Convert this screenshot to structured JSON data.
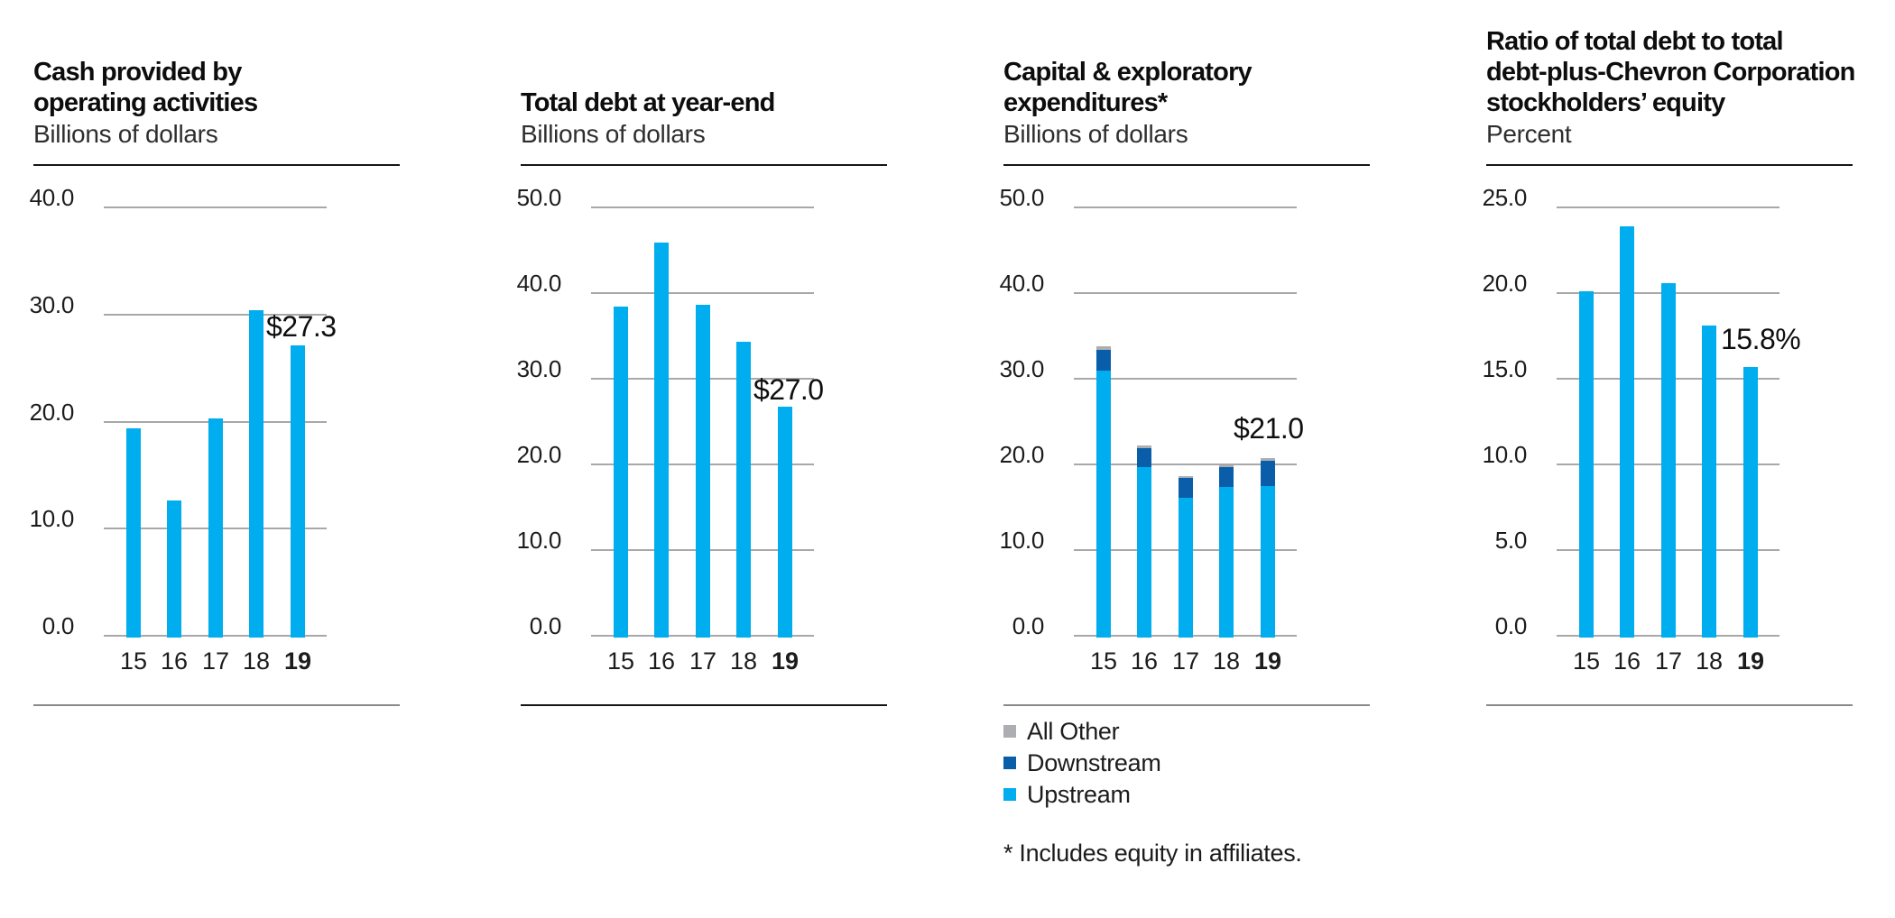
{
  "colors": {
    "upstream": "#00ADEE",
    "downstream": "#0A5EA9",
    "all_other": "#ACAEB1",
    "gridline": "#A8A8A8",
    "rule_dark": "#151515",
    "rule_gray": "#8A8A8A"
  },
  "chart_data": [
    {
      "type": "bar",
      "title": "Cash provided by\noperating activities",
      "subtitle": "Billions of dollars",
      "categories": [
        "15",
        "16",
        "17",
        "18",
        "19"
      ],
      "values": [
        19.5,
        12.8,
        20.5,
        30.6,
        27.3
      ],
      "ylim": [
        0,
        40
      ],
      "yticks": [
        "40.0",
        "30.0",
        "20.0",
        "10.0",
        "0.0"
      ],
      "value_label": "$27.3",
      "highlight_last_category": true,
      "grid": "on",
      "legend_position": "none",
      "bottom_rule": "gray"
    },
    {
      "type": "bar",
      "title": "Total debt at year-end",
      "subtitle": "Billions of dollars",
      "categories": [
        "15",
        "16",
        "17",
        "18",
        "19"
      ],
      "values": [
        38.6,
        46.1,
        38.8,
        34.5,
        27.0
      ],
      "ylim": [
        0,
        50
      ],
      "yticks": [
        "50.0",
        "40.0",
        "30.0",
        "20.0",
        "10.0",
        "0.0"
      ],
      "value_label": "$27.0",
      "highlight_last_category": true,
      "grid": "on",
      "legend_position": "none",
      "bottom_rule": "dark"
    },
    {
      "type": "bar",
      "stacked": true,
      "title": "Capital & exploratory\nexpenditures*",
      "subtitle": "Billions of dollars",
      "categories": [
        "15",
        "16",
        "17",
        "18",
        "19"
      ],
      "series": [
        {
          "name": "Upstream",
          "color_key": "upstream",
          "values": [
            31.2,
            19.9,
            16.3,
            17.6,
            17.7
          ]
        },
        {
          "name": "Downstream",
          "color_key": "downstream",
          "values": [
            2.4,
            2.2,
            2.3,
            2.3,
            2.9
          ]
        },
        {
          "name": "All Other",
          "color_key": "all_other",
          "values": [
            0.4,
            0.3,
            0.2,
            0.2,
            0.4
          ]
        }
      ],
      "totals": [
        34.0,
        22.4,
        18.8,
        20.1,
        21.0
      ],
      "ylim": [
        0,
        50
      ],
      "yticks": [
        "50.0",
        "40.0",
        "30.0",
        "20.0",
        "10.0",
        "0.0"
      ],
      "value_label": "$21.0",
      "highlight_last_category": true,
      "grid": "on",
      "legend_position": "below",
      "legend": [
        {
          "label": "All Other",
          "color_key": "all_other"
        },
        {
          "label": "Downstream",
          "color_key": "downstream"
        },
        {
          "label": "Upstream",
          "color_key": "upstream"
        }
      ],
      "footnote": "* Includes equity in affiliates.",
      "bottom_rule": "gray"
    },
    {
      "type": "bar",
      "title": "Ratio of total debt to total\ndebt-plus-Chevron Corporation\nstockholders’ equity",
      "subtitle": "Percent",
      "categories": [
        "15",
        "16",
        "17",
        "18",
        "19"
      ],
      "values": [
        20.2,
        24.0,
        20.7,
        18.2,
        15.8
      ],
      "ylim": [
        0,
        25
      ],
      "yticks": [
        "25.0",
        "20.0",
        "15.0",
        "10.0",
        "5.0",
        "0.0"
      ],
      "value_label": "15.8%",
      "highlight_last_category": true,
      "grid": "on",
      "legend_position": "none",
      "bottom_rule": "gray"
    }
  ]
}
